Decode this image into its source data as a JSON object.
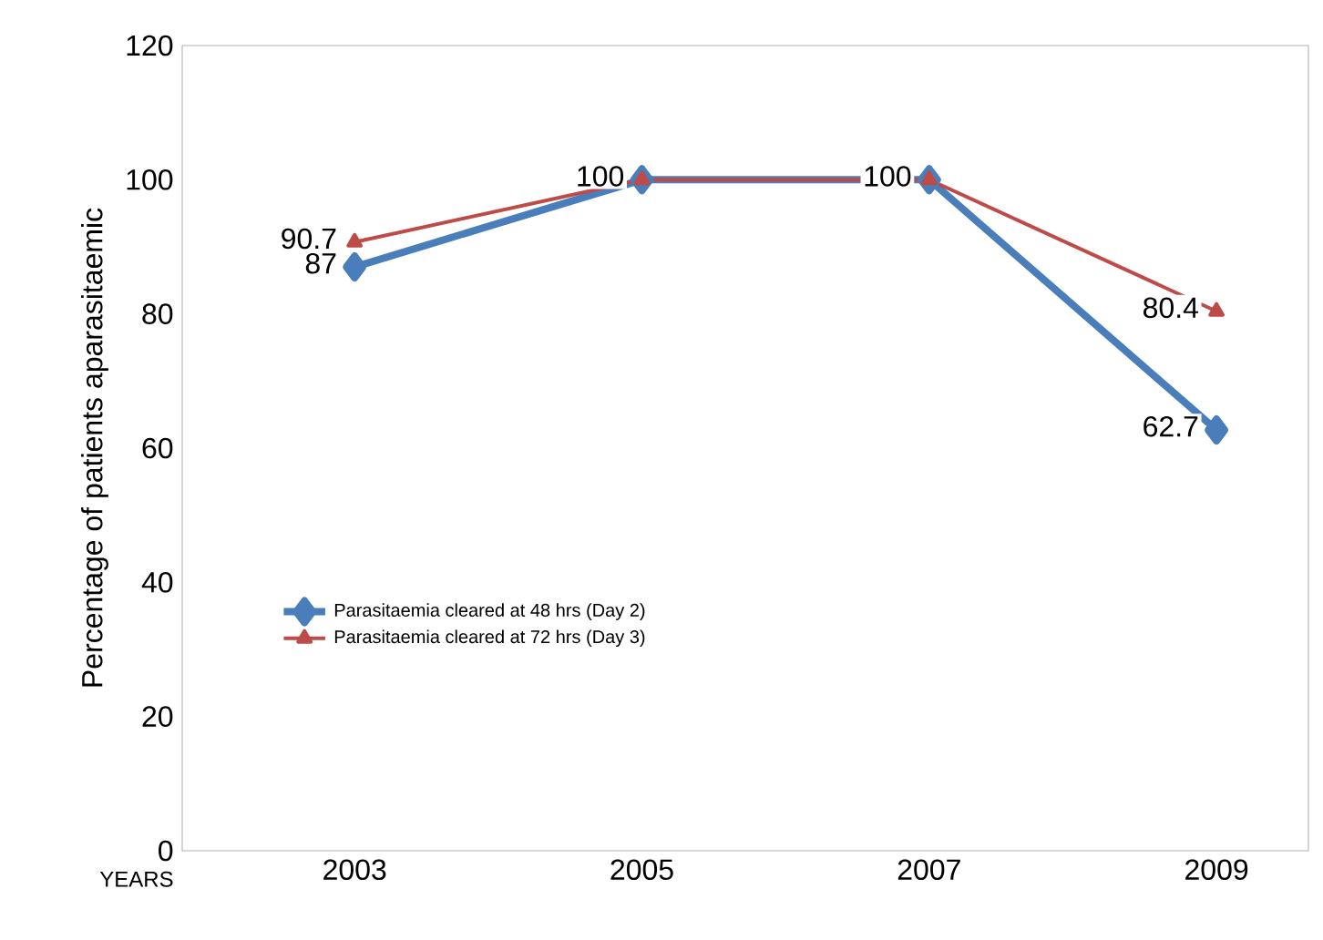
{
  "chart_data": {
    "type": "line",
    "xlabel": "YEARS",
    "ylabel": "Percentage of patients aparasitaemic",
    "categories": [
      "2003",
      "2005",
      "2007",
      "2009"
    ],
    "series": [
      {
        "name": "Parasitaemia cleared  at 48 hrs (Day 2)",
        "color": "#4a7ebb",
        "marker": "diamond",
        "values": [
          87,
          100,
          100,
          62.7
        ],
        "value_labels": [
          "87",
          null,
          null,
          "62.7"
        ]
      },
      {
        "name": "Parasitaemia cleared  at 72 hrs (Day 3)",
        "color": "#be4b48",
        "marker": "triangle",
        "values": [
          90.7,
          100,
          100,
          80.4
        ],
        "value_labels": [
          "90.7",
          "100",
          "100",
          "80.4"
        ]
      }
    ],
    "ylim": [
      0,
      120
    ],
    "yticks": [
      0,
      20,
      40,
      60,
      80,
      100,
      120
    ],
    "grid": false,
    "legend": "left"
  }
}
